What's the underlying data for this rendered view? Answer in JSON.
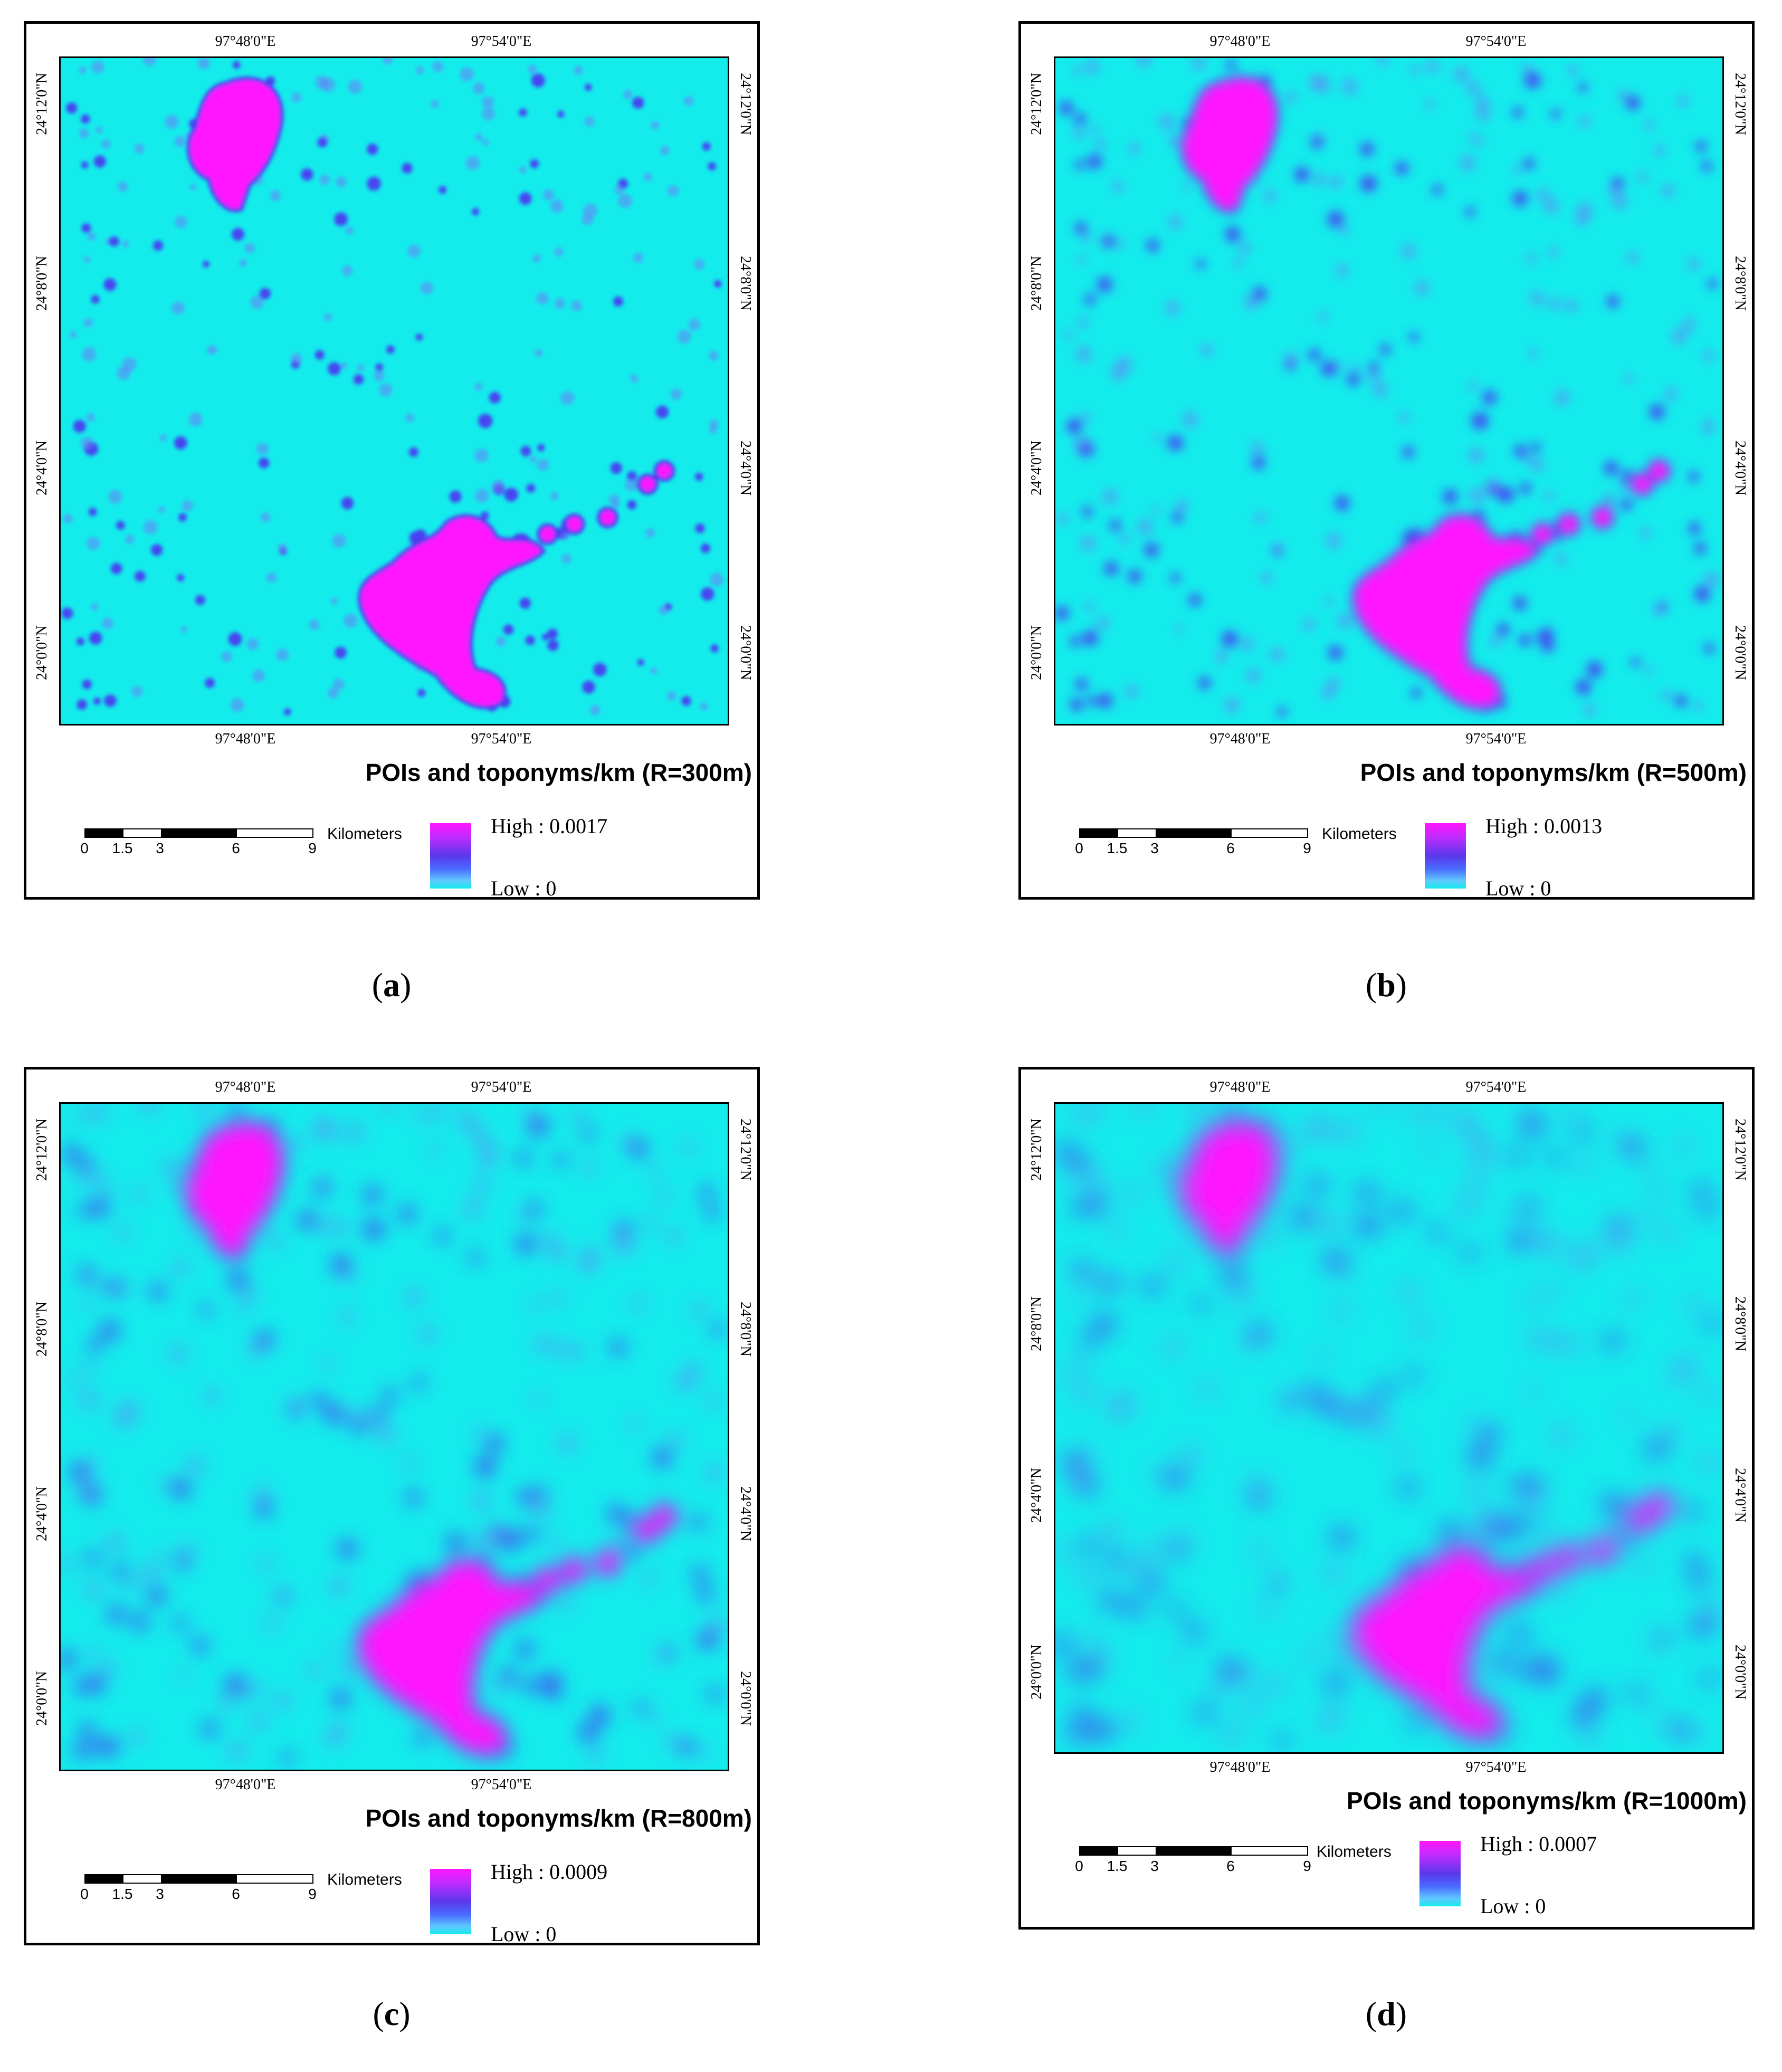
{
  "panels": {
    "a": {
      "caption_letter": "a",
      "title": "POIs and toponyms/km (R=300m)",
      "legend": {
        "high": "High : 0.0017",
        "low": "Low : 0"
      },
      "lon_labels": [
        "97°48'0\"E",
        "97°54'0\"E"
      ],
      "lat_labels": [
        "24°12'0\"N",
        "24°8'0\"N",
        "24°4'0\"N",
        "24°0'0\"N"
      ]
    },
    "b": {
      "caption_letter": "b",
      "title": "POIs and toponyms/km (R=500m)",
      "legend": {
        "high": "High : 0.0013",
        "low": "Low : 0"
      },
      "lon_labels": [
        "97°48'0\"E",
        "97°54'0\"E"
      ],
      "lat_labels": [
        "24°12'0\"N",
        "24°8'0\"N",
        "24°4'0\"N",
        "24°0'0\"N"
      ]
    },
    "c": {
      "caption_letter": "c",
      "title": "POIs and toponyms/km (R=800m)",
      "legend": {
        "high": "High : 0.0009",
        "low": "Low : 0"
      },
      "lon_labels": [
        "97°48'0\"E",
        "97°54'0\"E"
      ],
      "lat_labels": [
        "24°12'0\"N",
        "24°8'0\"N",
        "24°4'0\"N",
        "24°0'0\"N"
      ]
    },
    "d": {
      "caption_letter": "d",
      "title": "POIs and toponyms/km (R=1000m)",
      "legend": {
        "high": "High : 0.0007",
        "low": "Low : 0"
      },
      "lon_labels": [
        "97°48'0\"E",
        "97°54'0\"E"
      ],
      "lat_labels": [
        "24°12'0\"N",
        "24°8'0\"N",
        "24°4'0\"N",
        "24°0'0\"N"
      ]
    }
  },
  "scale": {
    "ticks": [
      "0",
      "1.5",
      "3",
      "6",
      "9"
    ],
    "unit": "Kilometers"
  },
  "colors": {
    "low": "#14ecec",
    "mid": "#4a3cf0",
    "high": "#ff16ff"
  }
}
